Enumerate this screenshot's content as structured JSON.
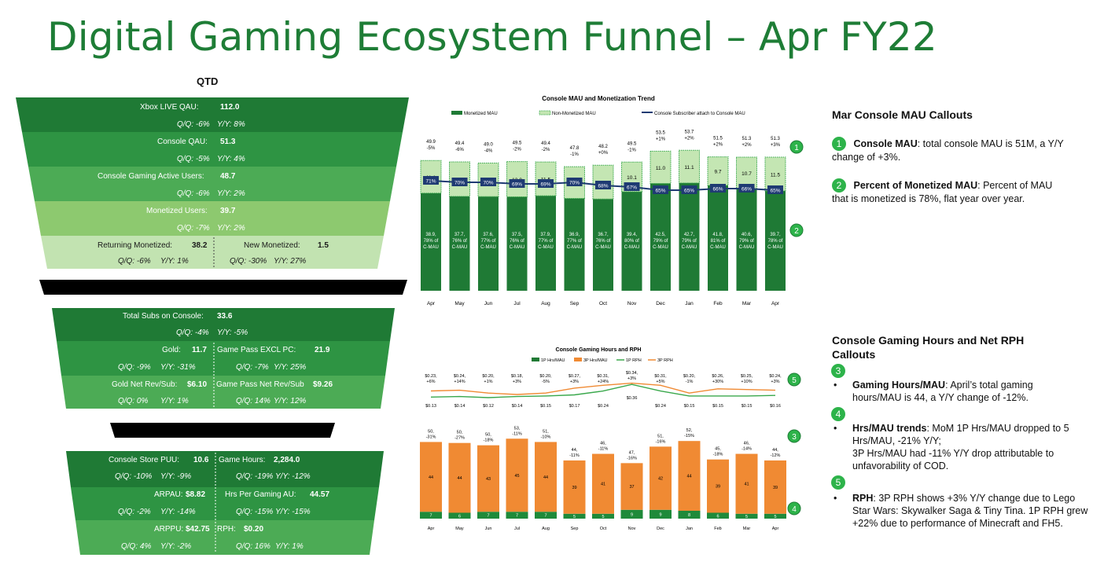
{
  "title": "Digital Gaming Ecosystem Funnel – Apr FY22",
  "qtd_label": "QTD",
  "funnel1": {
    "xbox_live_qau_label": "Xbox LIVE QAU:",
    "xbox_live_qau": "112.0",
    "xbox_live_qau_qq": "Q/Q: -6%",
    "xbox_live_qau_yy": "Y/Y: 8%",
    "console_qau_label": "Console QAU:",
    "console_qau": "51.3",
    "console_qau_qq": "Q/Q: -5%",
    "console_qau_yy": "Y/Y: 4%",
    "cgau_label": "Console Gaming Active Users:",
    "cgau": "48.7",
    "cgau_qq": "Q/Q: -6%",
    "cgau_yy": "Y/Y: 2%",
    "monetized_label": "Monetized Users:",
    "monetized": "39.7",
    "monetized_qq": "Q/Q: -7%",
    "monetized_yy": "Y/Y: 2%",
    "returning_label": "Returning Monetized:",
    "returning": "38.2",
    "returning_qq": "Q/Q: -6%",
    "returning_yy": "Y/Y: 1%",
    "new_label": "New Monetized:",
    "new": "1.5",
    "new_qq": "Q/Q: -30%",
    "new_yy": "Y/Y: 27%"
  },
  "funnel2": {
    "subs_label": "Total Subs on Console:",
    "subs": "33.6",
    "subs_qq": "Q/Q: -4%",
    "subs_yy": "Y/Y: -5%",
    "gold_label": "Gold:",
    "gold": "11.7",
    "gold_qq": "Q/Q: -9%",
    "gold_yy": "Y/Y: -31%",
    "gp_label": "Game Pass EXCL PC:",
    "gp": "21.9",
    "gp_qq": "Q/Q: -7%",
    "gp_yy": "Y/Y: 25%",
    "gold_rev_label": "Gold Net Rev/Sub:",
    "gold_rev": "$6.10",
    "gold_rev_qq": "Q/Q: 0%",
    "gold_rev_yy": "Y/Y: 1%",
    "gp_rev_label": "Game Pass Net Rev/Sub",
    "gp_rev": "$9.26",
    "gp_rev_qq": "Q/Q: 14%",
    "gp_rev_yy": "Y/Y: 12%"
  },
  "funnel3": {
    "puu_label": "Console Store PUU:",
    "puu": "10.6",
    "puu_qq": "Q/Q: -10%",
    "puu_yy": "Y/Y: -9%",
    "hours_label": "Game Hours:",
    "hours": "2,284.0",
    "hours_qq": "Q/Q: -19%",
    "hours_yy": "Y/Y: -12%",
    "arpau_label": "ARPAU:",
    "arpau": "$8.82",
    "arpau_qq": "Q/Q: -2%",
    "arpau_yy": "Y/Y: -14%",
    "hpgau_label": "Hrs Per Gaming AU:",
    "hpgau": "44.57",
    "hpgau_qq": "Q/Q: -15%",
    "hpgau_yy": "Y/Y: -15%",
    "arppu_label": "ARPPU:",
    "arppu": "$42.75",
    "arppu_qq": "Q/Q: 4%",
    "arppu_yy": "Y/Y: -2%",
    "rph_label": "RPH:",
    "rph": "$0.20",
    "rph_qq": "Q/Q: 16%",
    "rph_yy": "Y/Y: 1%"
  },
  "colors": {
    "title": "#1e7d36",
    "dark_green": "#1f7a35",
    "mid_green": "#3aa84c",
    "light_green": "#8fcf7a",
    "pale_green": "#c4e6b3",
    "orange": "#f08a33",
    "navy": "#1f3b73"
  },
  "chart_data": [
    {
      "type": "bar",
      "title": "Console MAU and Monetization Trend",
      "legend": [
        "Monetized MAU",
        "Non-Monetized MAU",
        "Console Subscriber attach to Console MAU"
      ],
      "categories": [
        "Apr",
        "May",
        "Jun",
        "Jul",
        "Aug",
        "Sep",
        "Oct",
        "Nov",
        "Dec",
        "Jan",
        "Feb",
        "Mar",
        "Apr"
      ],
      "totals": [
        "49.9",
        "49.4",
        "49.0",
        "49.5",
        "49.4",
        "47.8",
        "48.2",
        "49.5",
        "53.5",
        "53.7",
        "51.5",
        "51.3",
        "51.3"
      ],
      "total_changes": [
        "-5%",
        "-6%",
        "-4%",
        "-2%",
        "-2%",
        "-1%",
        "+0%",
        "-1%",
        "+1%",
        "+2%",
        "+2%",
        "+2%",
        "+3%"
      ],
      "series": [
        {
          "name": "Monetized MAU",
          "values": [
            38.9,
            37.7,
            37.6,
            37.5,
            37.9,
            36.9,
            36.7,
            39.4,
            42.5,
            42.7,
            41.8,
            40.6,
            39.7
          ],
          "pct": [
            "78%",
            "76%",
            "77%",
            "76%",
            "77%",
            "77%",
            "76%",
            "80%",
            "79%",
            "79%",
            "81%",
            "79%",
            "78%"
          ]
        },
        {
          "name": "Non-Monetized MAU",
          "values": [
            11.1,
            11.7,
            11.4,
            12.0,
            11.5,
            10.8,
            11.5,
            10.1,
            11.0,
            11.1,
            9.7,
            10.7,
            11.5
          ]
        },
        {
          "name": "Console Subscriber attach to Console MAU",
          "values": [
            "71%",
            "70%",
            "70%",
            "69%",
            "69%",
            "70%",
            "68%",
            "67%",
            "65%",
            "65%",
            "66%",
            "66%",
            "65%"
          ]
        }
      ],
      "pct_suffix": "of C-MAU"
    },
    {
      "type": "bar",
      "title": "Console Gaming Hours and RPH",
      "legend": [
        "1P Hrs/MAU",
        "3P Hrs/MAU",
        "1P RPH",
        "3P RPH"
      ],
      "categories": [
        "Apr",
        "May",
        "Jun",
        "Jul",
        "Aug",
        "Sep",
        "Oct",
        "Nov",
        "Dec",
        "Jan",
        "Feb",
        "Mar",
        "Apr"
      ],
      "rph_3p": [
        "$0.23,",
        "$0.24,",
        "$0.20,",
        "$0.18,",
        "$0.20,",
        "$0.27,",
        "$0.31,",
        "$0.34,",
        "$0.31,",
        "$0.20,",
        "$0.26,",
        "$0.25,",
        "$0.24,"
      ],
      "rph_3p_changes": [
        "+6%",
        "+14%",
        "+1%",
        "+3%",
        "-5%",
        "+3%",
        "+24%",
        "+3%",
        "+5%",
        "-1%",
        "+30%",
        "+10%",
        "+3%"
      ],
      "rph_1p": [
        "$0.13",
        "$0.14",
        "$0.12",
        "$0.14",
        "$0.15",
        "$0.17",
        "$0.24",
        "$0.36",
        "$0.24",
        "$0.15",
        "$0.15",
        "$0.15",
        "$0.16"
      ],
      "totals": [
        "50,",
        "50,",
        "50,",
        "53,",
        "51,",
        "44,",
        "46,",
        "47,",
        "51,",
        "52,",
        "45,",
        "46,",
        "44,"
      ],
      "total_changes": [
        "-31%",
        "-27%",
        "-18%",
        "-11%",
        "-10%",
        "-11%",
        "-11%",
        "-16%",
        "-16%",
        "-15%",
        "-18%",
        "-14%",
        "-12%"
      ],
      "series": [
        {
          "name": "3P Hrs/MAU",
          "values": [
            44,
            44,
            43,
            45,
            44,
            39,
            41,
            37,
            42,
            44,
            39,
            41,
            39
          ]
        },
        {
          "name": "1P Hrs/MAU",
          "values": [
            7,
            6,
            7,
            7,
            7,
            5,
            5,
            9,
            9,
            8,
            6,
            5,
            5
          ]
        }
      ]
    }
  ],
  "callouts1": {
    "heading": "Mar Console MAU Callouts",
    "n1": "1",
    "b1": "Console MAU",
    "t1": ": total console MAU is 51M, a Y/Y change of +3%.",
    "n2": "2",
    "b2": "Percent of Monetized MAU",
    "t2": ": Percent of MAU that is monetized is 78%, flat year over year."
  },
  "callouts2": {
    "heading": "Console Gaming Hours and Net RPH Callouts",
    "n3": "3",
    "b3": "Gaming Hours/MAU",
    "t3": ": April’s total gaming hours/MAU is 44, a Y/Y change of -12%.",
    "n4": "4",
    "b4": "Hrs/MAU trends",
    "t4a": ": MoM 1P Hrs/MAU dropped to 5 Hrs/MAU, -21% Y/Y;",
    "t4b": "3P Hrs/MAU had -11% Y/Y drop attributable to unfavorability of COD.",
    "n5": "5",
    "b5": "RPH",
    "t5": ": 3P RPH shows +3% Y/Y change due to Lego Star Wars: Skywalker Saga & Tiny Tina. 1P RPH grew +22% due to performance of Minecraft and FH5."
  },
  "markers": {
    "m1": "1",
    "m2": "2",
    "m3": "3",
    "m4": "4",
    "m5": "5"
  }
}
